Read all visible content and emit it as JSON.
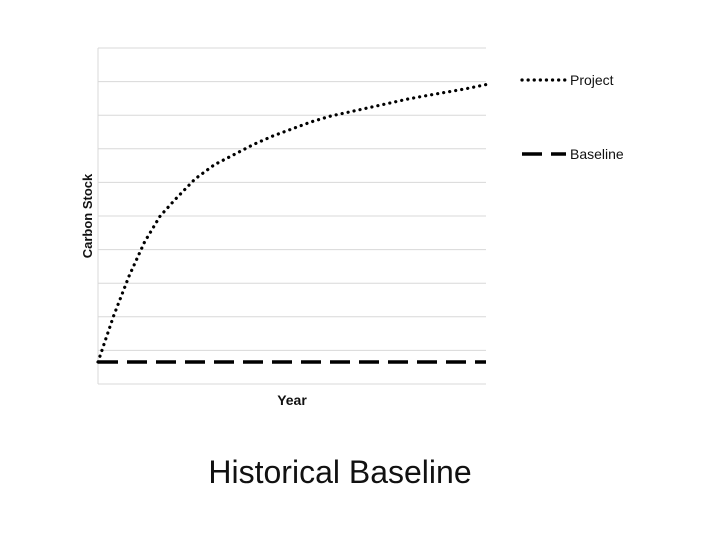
{
  "slide": {
    "caption": "Historical Baseline"
  },
  "chart_data": {
    "type": "line",
    "title": "",
    "xlabel": "Year",
    "ylabel": "Carbon Stock",
    "x_ticks_labeled": false,
    "y_ticks_labeled": false,
    "grid": {
      "horizontal": true,
      "vertical": false
    },
    "legend": "right",
    "xlim": [
      0,
      1
    ],
    "ylim": [
      0,
      1
    ],
    "series": [
      {
        "name": "Project",
        "style": "dotted",
        "color": "#000000",
        "x": [
          0,
          0.04,
          0.08,
          0.12,
          0.16,
          0.2,
          0.25,
          0.3,
          0.35,
          0.4,
          0.45,
          0.5,
          0.55,
          0.6,
          0.65,
          0.7,
          0.75,
          0.8,
          0.85,
          0.9,
          0.95,
          1.0
        ],
        "y": [
          0.0,
          0.16,
          0.3,
          0.42,
          0.51,
          0.57,
          0.64,
          0.69,
          0.725,
          0.76,
          0.79,
          0.815,
          0.84,
          0.86,
          0.875,
          0.89,
          0.905,
          0.92,
          0.932,
          0.944,
          0.956,
          0.97
        ]
      },
      {
        "name": "Baseline",
        "style": "dashed",
        "color": "#000000",
        "x": [
          0,
          1
        ],
        "y": [
          0,
          0
        ]
      }
    ]
  }
}
